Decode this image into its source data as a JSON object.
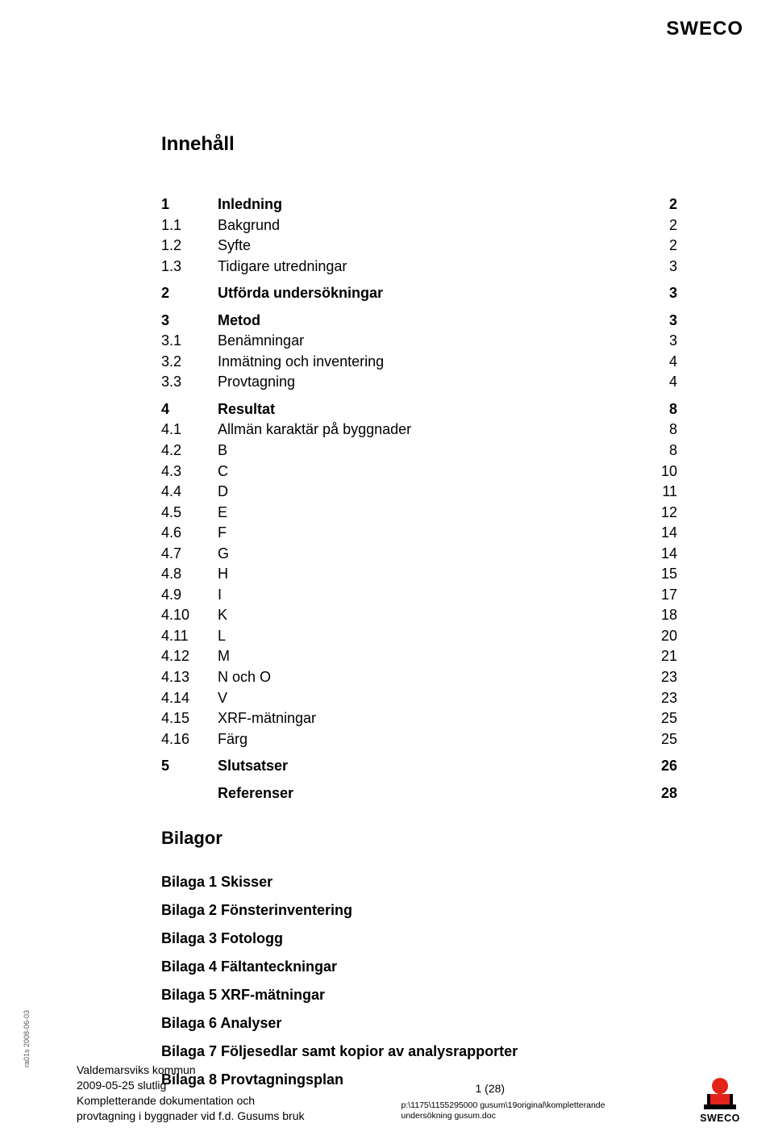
{
  "header": {
    "logo_text": "SWECO"
  },
  "title": "Innehåll",
  "toc": [
    {
      "num": "1",
      "label": "Inledning",
      "page": "2",
      "bold": true,
      "gap_before": false
    },
    {
      "num": "1.1",
      "label": "Bakgrund",
      "page": "2",
      "bold": false,
      "gap_before": false
    },
    {
      "num": "1.2",
      "label": "Syfte",
      "page": "2",
      "bold": false,
      "gap_before": false
    },
    {
      "num": "1.3",
      "label": "Tidigare utredningar",
      "page": "3",
      "bold": false,
      "gap_before": false
    },
    {
      "num": "2",
      "label": "Utförda undersökningar",
      "page": "3",
      "bold": true,
      "gap_before": true
    },
    {
      "num": "3",
      "label": "Metod",
      "page": "3",
      "bold": true,
      "gap_before": true
    },
    {
      "num": "3.1",
      "label": "Benämningar",
      "page": "3",
      "bold": false,
      "gap_before": false
    },
    {
      "num": "3.2",
      "label": "Inmätning och inventering",
      "page": "4",
      "bold": false,
      "gap_before": false
    },
    {
      "num": "3.3",
      "label": "Provtagning",
      "page": "4",
      "bold": false,
      "gap_before": false
    },
    {
      "num": "4",
      "label": "Resultat",
      "page": "8",
      "bold": true,
      "gap_before": true
    },
    {
      "num": "4.1",
      "label": "Allmän karaktär på byggnader",
      "page": "8",
      "bold": false,
      "gap_before": false
    },
    {
      "num": "4.2",
      "label": "B",
      "page": "8",
      "bold": false,
      "gap_before": false
    },
    {
      "num": "4.3",
      "label": "C",
      "page": "10",
      "bold": false,
      "gap_before": false
    },
    {
      "num": "4.4",
      "label": "D",
      "page": "11",
      "bold": false,
      "gap_before": false
    },
    {
      "num": "4.5",
      "label": "E",
      "page": "12",
      "bold": false,
      "gap_before": false
    },
    {
      "num": "4.6",
      "label": "F",
      "page": "14",
      "bold": false,
      "gap_before": false
    },
    {
      "num": "4.7",
      "label": "G",
      "page": "14",
      "bold": false,
      "gap_before": false
    },
    {
      "num": "4.8",
      "label": "H",
      "page": "15",
      "bold": false,
      "gap_before": false
    },
    {
      "num": "4.9",
      "label": "I",
      "page": "17",
      "bold": false,
      "gap_before": false
    },
    {
      "num": "4.10",
      "label": "K",
      "page": "18",
      "bold": false,
      "gap_before": false
    },
    {
      "num": "4.11",
      "label": "L",
      "page": "20",
      "bold": false,
      "gap_before": false
    },
    {
      "num": "4.12",
      "label": "M",
      "page": "21",
      "bold": false,
      "gap_before": false
    },
    {
      "num": "4.13",
      "label": "N och O",
      "page": "23",
      "bold": false,
      "gap_before": false
    },
    {
      "num": "4.14",
      "label": "V",
      "page": "23",
      "bold": false,
      "gap_before": false
    },
    {
      "num": "4.15",
      "label": "XRF-mätningar",
      "page": "25",
      "bold": false,
      "gap_before": false
    },
    {
      "num": "4.16",
      "label": "Färg",
      "page": "25",
      "bold": false,
      "gap_before": false
    },
    {
      "num": "5",
      "label": "Slutsatser",
      "page": "26",
      "bold": true,
      "gap_before": true
    },
    {
      "num": "",
      "label": "Referenser",
      "page": "28",
      "bold": true,
      "gap_before": true
    }
  ],
  "bilagor": {
    "heading": "Bilagor",
    "items": [
      "Bilaga 1 Skisser",
      "Bilaga 2 Fönsterinventering",
      "Bilaga 3 Fotologg",
      "Bilaga 4 Fältanteckningar",
      "Bilaga 5 XRF-mätningar",
      "Bilaga 6 Analyser",
      "Bilaga 7 Följesedlar samt kopior av analysrapporter",
      "Bilaga 8 Provtagningsplan"
    ]
  },
  "side_label": "ra01s 2008-06-03",
  "footer": {
    "left": [
      "Valdemarsviks kommun",
      "2009-05-25 slutlig",
      "Kompletterande dokumentation och",
      "provtagning i byggnader vid f.d. Gusums bruk"
    ],
    "page_indicator": "1 (28)",
    "path": [
      "p:\\1175\\1155295000 gusum\\19original\\kompletterande",
      "undersökning gusum.doc"
    ],
    "brand": "SWECO",
    "logo_colors": {
      "fill": "#e2231a",
      "stroke": "#000000"
    }
  }
}
